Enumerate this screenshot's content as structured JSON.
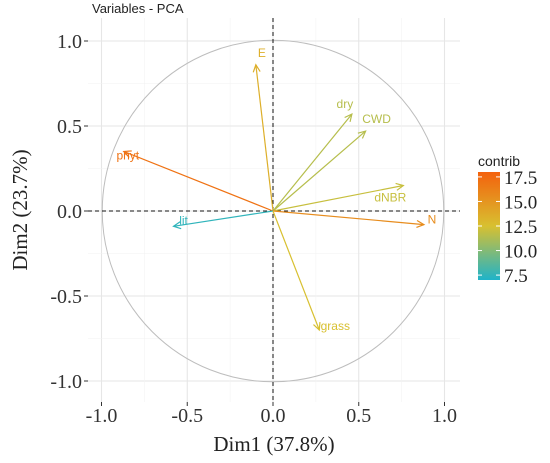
{
  "chart_data": {
    "type": "scatter",
    "title": "Variables - PCA",
    "xlabel": "Dim1 (37.8%)",
    "ylabel": "Dim2 (23.7%)",
    "xlim": [
      -1.0,
      1.0
    ],
    "ylim": [
      -1.0,
      1.0
    ],
    "x_ticks": [
      "-1.0",
      "-0.5",
      "0.0",
      "0.5",
      "1.0"
    ],
    "y_ticks": [
      "-1.0",
      "-0.5",
      "0.0",
      "0.5",
      "1.0"
    ],
    "grid": true,
    "correlation_circle": true,
    "variables": [
      {
        "name": "E",
        "x": -0.1,
        "y": 0.86,
        "contrib": 13.5
      },
      {
        "name": "dry",
        "x": 0.46,
        "y": 0.57,
        "contrib": 11.5
      },
      {
        "name": "CWD",
        "x": 0.54,
        "y": 0.47,
        "contrib": 11.5
      },
      {
        "name": "dNBR",
        "x": 0.76,
        "y": 0.15,
        "contrib": 12.0
      },
      {
        "name": "N",
        "x": 0.88,
        "y": -0.08,
        "contrib": 15.5
      },
      {
        "name": "phyt",
        "x": -0.87,
        "y": 0.35,
        "contrib": 17.0
      },
      {
        "name": "lit",
        "x": -0.58,
        "y": -0.09,
        "contrib": 7.5
      },
      {
        "name": "grass",
        "x": 0.27,
        "y": -0.7,
        "contrib": 12.5
      }
    ],
    "legend": {
      "title": "contrib",
      "ticks": [
        "17.5",
        "15.0",
        "12.5",
        "10.0",
        "7.5"
      ],
      "range": [
        7.0,
        18.0
      ],
      "placement": "right",
      "colors": [
        "#1fb3c9",
        "#d8c030",
        "#f4610d"
      ]
    }
  }
}
